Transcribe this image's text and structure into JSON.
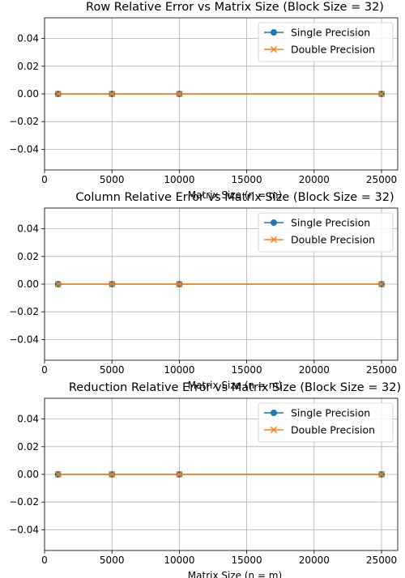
{
  "chart_data": [
    {
      "type": "line",
      "title": "Row Relative Error vs Matrix Size (Block Size = 32)",
      "xlabel": "Matrix Size (n = m)",
      "ylabel": "",
      "x": [
        1000,
        5000,
        10000,
        25000
      ],
      "series": [
        {
          "name": "Single Precision",
          "values": [
            0,
            0,
            0,
            0
          ],
          "color": "#1f77b4",
          "marker": "circle"
        },
        {
          "name": "Double Precision",
          "values": [
            0,
            0,
            0,
            0
          ],
          "color": "#ff7f0e",
          "marker": "x"
        }
      ],
      "xlim": [
        0,
        26200
      ],
      "ylim": [
        -0.055,
        0.055
      ],
      "xticks": [
        0,
        5000,
        10000,
        15000,
        20000,
        25000
      ],
      "xtick_labels": [
        "0",
        "5000",
        "10000",
        "15000",
        "20000",
        "25000"
      ],
      "yticks": [
        -0.04,
        -0.02,
        0.0,
        0.02,
        0.04
      ],
      "ytick_labels": [
        "−0.04",
        "−0.02",
        "0.00",
        "0.02",
        "0.04"
      ],
      "grid": true,
      "legend": "top-right"
    },
    {
      "type": "line",
      "title": "Column Relative Error vs Matrix Size (Block Size = 32)",
      "xlabel": "Matrix Size (n = m)",
      "ylabel": "",
      "x": [
        1000,
        5000,
        10000,
        25000
      ],
      "series": [
        {
          "name": "Single Precision",
          "values": [
            0,
            0,
            0,
            0
          ],
          "color": "#1f77b4",
          "marker": "circle"
        },
        {
          "name": "Double Precision",
          "values": [
            0,
            0,
            0,
            0
          ],
          "color": "#ff7f0e",
          "marker": "x"
        }
      ],
      "xlim": [
        0,
        26200
      ],
      "ylim": [
        -0.055,
        0.055
      ],
      "xticks": [
        0,
        5000,
        10000,
        15000,
        20000,
        25000
      ],
      "xtick_labels": [
        "0",
        "5000",
        "10000",
        "15000",
        "20000",
        "25000"
      ],
      "yticks": [
        -0.04,
        -0.02,
        0.0,
        0.02,
        0.04
      ],
      "ytick_labels": [
        "−0.04",
        "−0.02",
        "0.00",
        "0.02",
        "0.04"
      ],
      "grid": true,
      "legend": "top-right"
    },
    {
      "type": "line",
      "title": "Reduction Relative Error vs Matrix Size (Block Size = 32)",
      "xlabel": "Matrix Size (n = m)",
      "ylabel": "",
      "x": [
        1000,
        5000,
        10000,
        25000
      ],
      "series": [
        {
          "name": "Single Precision",
          "values": [
            0,
            0,
            0,
            0
          ],
          "color": "#1f77b4",
          "marker": "circle"
        },
        {
          "name": "Double Precision",
          "values": [
            0,
            0,
            0,
            0
          ],
          "color": "#ff7f0e",
          "marker": "x"
        }
      ],
      "xlim": [
        0,
        26200
      ],
      "ylim": [
        -0.055,
        0.055
      ],
      "xticks": [
        0,
        5000,
        10000,
        15000,
        20000,
        25000
      ],
      "xtick_labels": [
        "0",
        "5000",
        "10000",
        "15000",
        "20000",
        "25000"
      ],
      "yticks": [
        -0.04,
        -0.02,
        0.0,
        0.02,
        0.04
      ],
      "ytick_labels": [
        "−0.04",
        "−0.02",
        "0.00",
        "0.02",
        "0.04"
      ],
      "grid": true,
      "legend": "top-right"
    }
  ]
}
